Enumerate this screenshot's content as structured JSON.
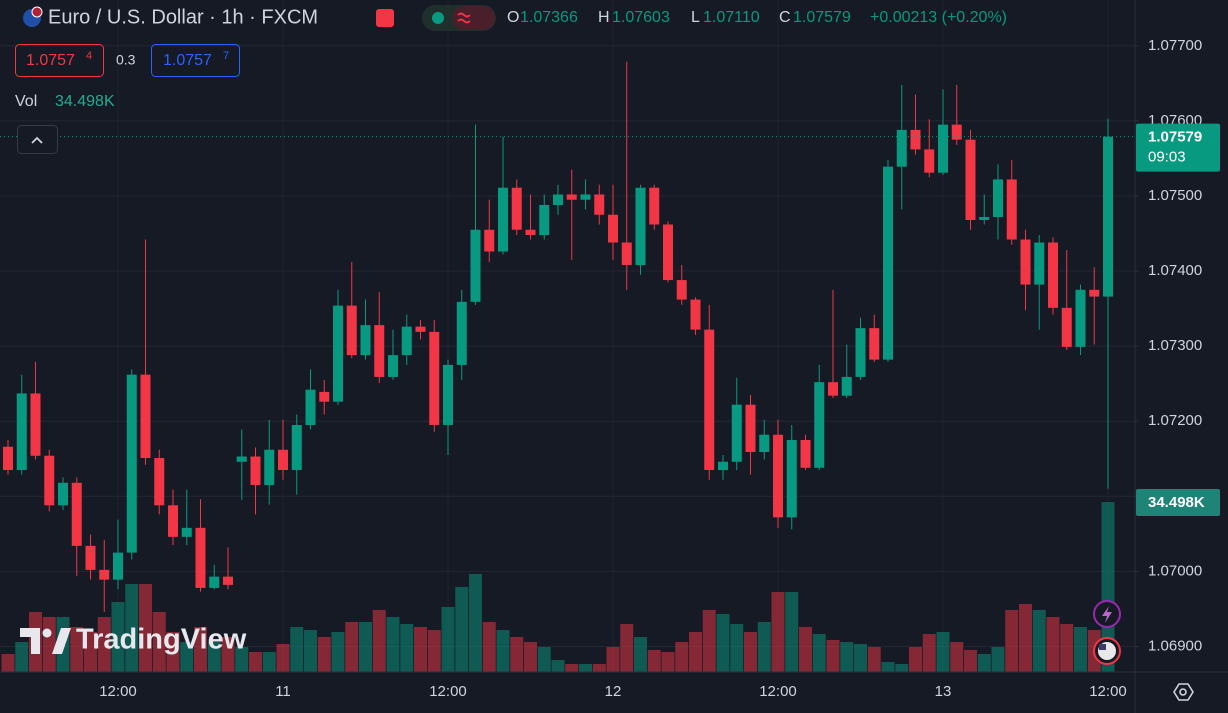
{
  "chart_data": {
    "type": "candlestick",
    "header": {
      "title": "Euro / U.S. Dollar · 1h · FXCM",
      "o_label": "O",
      "o": "1.07366",
      "h_label": "H",
      "h": "1.07603",
      "l_label": "L",
      "l": "1.07110",
      "c_label": "C",
      "c": "1.07579",
      "change": "+0.00213 (+0.20%)"
    },
    "bid": {
      "price": "1.0757",
      "pip": "4"
    },
    "spread": "0.3",
    "ask": {
      "price": "1.0757",
      "pip": "7"
    },
    "volume_title": "Vol",
    "last_volume_label": "34.498K",
    "price_label": "1.07579",
    "countdown": "09:03",
    "logo": "TradingView",
    "up_color": "#089981",
    "down_color": "#f23645",
    "grid": true,
    "ylim": [
      1.06866,
      1.07761
    ],
    "yticks": [
      {
        "value": 1.077,
        "label": "1.07700"
      },
      {
        "value": 1.076,
        "label": "1.07600"
      },
      {
        "value": 1.075,
        "label": "1.07500"
      },
      {
        "value": 1.074,
        "label": "1.07400"
      },
      {
        "value": 1.073,
        "label": "1.07300"
      },
      {
        "value": 1.072,
        "label": "1.07200"
      },
      {
        "value": 1.071,
        "label": "1.07100"
      },
      {
        "value": 1.07,
        "label": "1.07000"
      },
      {
        "value": 1.069,
        "label": "1.06900"
      }
    ],
    "categories": [
      null,
      null,
      null,
      null,
      null,
      null,
      null,
      null,
      "12:00",
      null,
      null,
      null,
      null,
      null,
      null,
      null,
      null,
      null,
      null,
      null,
      "11",
      null,
      null,
      null,
      null,
      null,
      null,
      null,
      null,
      null,
      null,
      null,
      "12:00",
      null,
      null,
      null,
      null,
      null,
      null,
      null,
      null,
      null,
      null,
      null,
      "12",
      null,
      null,
      null,
      null,
      null,
      null,
      null,
      null,
      null,
      null,
      null,
      "12:00",
      null,
      null,
      null,
      null,
      null,
      null,
      null,
      null,
      null,
      null,
      null,
      "13",
      null,
      null,
      null,
      null,
      null,
      null,
      null,
      null,
      null,
      null,
      null,
      "12:00"
    ],
    "open": [
      1.07166,
      1.07135,
      1.07237,
      1.07154,
      1.07088,
      1.07118,
      1.07034,
      1.07002,
      1.06989,
      1.07025,
      1.07262,
      1.07151,
      1.07088,
      1.07046,
      1.07058,
      1.06978,
      1.06993,
      1.07146,
      1.07153,
      1.07115,
      1.07162,
      1.07135,
      1.07195,
      1.07239,
      1.07226,
      1.07354,
      1.07288,
      1.07328,
      1.07259,
      1.07288,
      1.07326,
      1.07319,
      1.07195,
      1.07275,
      1.07359,
      1.07455,
      1.07426,
      1.07511,
      1.07455,
      1.07448,
      1.07488,
      1.07502,
      1.07495,
      1.07502,
      1.07475,
      1.07438,
      1.07408,
      1.07511,
      1.07462,
      1.07388,
      1.07362,
      1.07322,
      1.07135,
      1.07146,
      1.07222,
      1.07159,
      1.07182,
      1.07072,
      1.07175,
      1.07138,
      1.07252,
      1.07234,
      1.07259,
      1.07324,
      1.07282,
      1.07539,
      1.07588,
      1.07562,
      1.07531,
      1.07595,
      1.07575,
      1.07468,
      1.07472,
      1.07522,
      1.07442,
      1.07382,
      1.07438,
      1.07351,
      1.07299,
      1.07375,
      1.07366
    ],
    "high": [
      1.07175,
      1.07262,
      1.07279,
      1.07162,
      1.07125,
      1.07125,
      1.07049,
      1.07042,
      1.07069,
      1.07269,
      1.07442,
      1.07162,
      1.07109,
      1.07109,
      1.07096,
      1.07009,
      1.07032,
      1.07189,
      1.07165,
      1.07202,
      1.07202,
      1.07209,
      1.07269,
      1.07255,
      1.07375,
      1.07412,
      1.07362,
      1.07372,
      1.07322,
      1.07342,
      1.07335,
      1.07335,
      1.07282,
      1.07375,
      1.07595,
      1.07495,
      1.07579,
      1.07522,
      1.07502,
      1.07502,
      1.07515,
      1.07535,
      1.07522,
      1.07515,
      1.07515,
      1.07679,
      1.07515,
      1.07515,
      1.07466,
      1.07408,
      1.07365,
      1.07355,
      1.07155,
      1.07258,
      1.07235,
      1.07202,
      1.07202,
      1.07195,
      1.07182,
      1.07275,
      1.07375,
      1.07302,
      1.07338,
      1.07342,
      1.07548,
      1.07648,
      1.07635,
      1.07602,
      1.07642,
      1.07648,
      1.07588,
      1.07502,
      1.07542,
      1.07548,
      1.07455,
      1.07448,
      1.07445,
      1.07428,
      1.07382,
      1.07405,
      1.07603
    ],
    "low": [
      1.07129,
      1.07129,
      1.07149,
      1.0708,
      1.07082,
      1.06994,
      1.06989,
      1.06946,
      1.06976,
      1.07016,
      1.07142,
      1.07076,
      1.07035,
      1.07035,
      1.06973,
      1.06976,
      1.06976,
      1.07095,
      1.07076,
      1.07089,
      1.07122,
      1.07102,
      1.07189,
      1.07209,
      1.07222,
      1.07284,
      1.07282,
      1.07251,
      1.07255,
      1.07275,
      1.07309,
      1.07186,
      1.07155,
      1.07255,
      1.07355,
      1.07412,
      1.07422,
      1.07448,
      1.07442,
      1.07442,
      1.07475,
      1.07415,
      1.07482,
      1.07462,
      1.07415,
      1.07375,
      1.07395,
      1.07455,
      1.07385,
      1.07355,
      1.07315,
      1.07122,
      1.07122,
      1.07135,
      1.07129,
      1.07149,
      1.07058,
      1.07056,
      1.07135,
      1.07135,
      1.07231,
      1.07231,
      1.07255,
      1.07279,
      1.07279,
      1.07482,
      1.07555,
      1.07525,
      1.07528,
      1.07568,
      1.07455,
      1.07462,
      1.07442,
      1.07435,
      1.07348,
      1.07322,
      1.07342,
      1.07295,
      1.07288,
      1.07302,
      1.0711
    ],
    "close": [
      1.07135,
      1.07237,
      1.07154,
      1.07088,
      1.07118,
      1.07034,
      1.07002,
      1.06989,
      1.07025,
      1.07262,
      1.07151,
      1.07088,
      1.07046,
      1.07058,
      1.06978,
      1.06993,
      1.06982,
      1.07153,
      1.07115,
      1.07162,
      1.07135,
      1.07195,
      1.07242,
      1.07226,
      1.07354,
      1.07288,
      1.07328,
      1.07259,
      1.07288,
      1.07326,
      1.07319,
      1.07195,
      1.07275,
      1.07359,
      1.07455,
      1.07426,
      1.07511,
      1.07455,
      1.07448,
      1.07488,
      1.07502,
      1.07495,
      1.07502,
      1.07475,
      1.07438,
      1.07408,
      1.07511,
      1.07462,
      1.07388,
      1.07362,
      1.07322,
      1.07135,
      1.07146,
      1.07222,
      1.07159,
      1.07182,
      1.07072,
      1.07175,
      1.07138,
      1.07252,
      1.07234,
      1.07259,
      1.07324,
      1.07282,
      1.07539,
      1.07588,
      1.07562,
      1.07531,
      1.07595,
      1.07575,
      1.07468,
      1.07472,
      1.07522,
      1.07442,
      1.07382,
      1.07438,
      1.07351,
      1.07299,
      1.07375,
      1.07366,
      1.07579
    ],
    "volume": [
      3654,
      6090,
      12180,
      11165,
      11165,
      9135,
      8120,
      11165,
      14210,
      17864,
      17864,
      12180,
      8120,
      6090,
      9135,
      6090,
      7105,
      5075,
      4060,
      4060,
      5684,
      9135,
      8526,
      7105,
      8120,
      10150,
      10150,
      12586,
      11165,
      9744,
      9135,
      8526,
      13195,
      17255,
      19894,
      10150,
      8526,
      7105,
      6090,
      5075,
      2436,
      1624,
      1624,
      1624,
      5075,
      9744,
      7105,
      4466,
      4060,
      6090,
      8120,
      12586,
      11774,
      9744,
      8120,
      10150,
      16240,
      16240,
      9135,
      7714,
      6496,
      6090,
      5684,
      5075,
      2030,
      1624,
      5075,
      7714,
      8120,
      6090,
      4466,
      3654,
      5075,
      12586,
      13804,
      12586,
      11165,
      9744,
      9135,
      8526,
      34498
    ]
  }
}
